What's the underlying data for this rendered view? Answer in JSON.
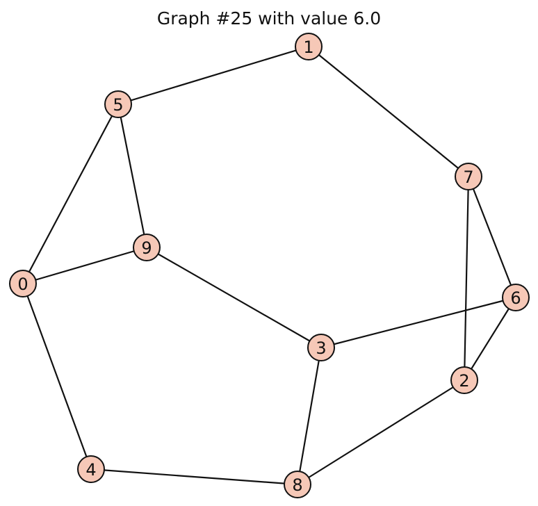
{
  "title": "Graph #25 with value 6.0",
  "colors": {
    "node_fill": "#f6c8b7",
    "node_stroke": "#111111",
    "edge": "#111111"
  },
  "nodes": [
    {
      "id": "0",
      "label": "0"
    },
    {
      "id": "1",
      "label": "1"
    },
    {
      "id": "2",
      "label": "2"
    },
    {
      "id": "3",
      "label": "3"
    },
    {
      "id": "4",
      "label": "4"
    },
    {
      "id": "5",
      "label": "5"
    },
    {
      "id": "6",
      "label": "6"
    },
    {
      "id": "7",
      "label": "7"
    },
    {
      "id": "8",
      "label": "8"
    },
    {
      "id": "9",
      "label": "9"
    }
  ],
  "edges": [
    [
      "1",
      "5"
    ],
    [
      "1",
      "7"
    ],
    [
      "5",
      "0"
    ],
    [
      "5",
      "9"
    ],
    [
      "0",
      "9"
    ],
    [
      "0",
      "4"
    ],
    [
      "9",
      "3"
    ],
    [
      "7",
      "6"
    ],
    [
      "7",
      "2"
    ],
    [
      "6",
      "3"
    ],
    [
      "6",
      "2"
    ],
    [
      "3",
      "8"
    ],
    [
      "2",
      "8"
    ],
    [
      "4",
      "8"
    ]
  ]
}
